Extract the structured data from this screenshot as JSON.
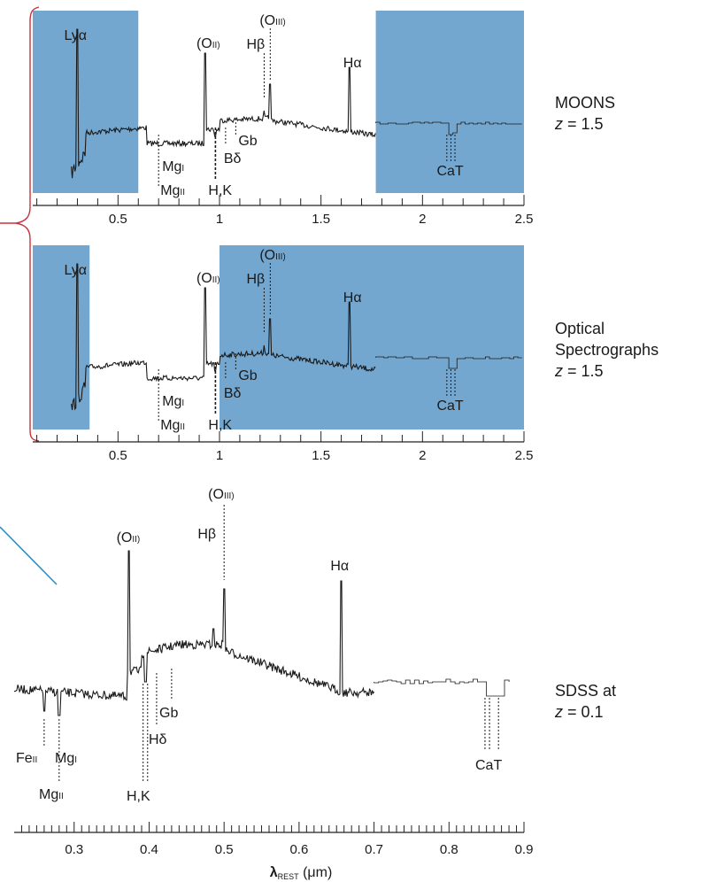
{
  "colors": {
    "band": "#74a7cf",
    "spectrum": "#1a1a1a",
    "bracket": "#c8323c",
    "pointer": "#2a8fc4",
    "axis": "#222222"
  },
  "chart_data": [
    {
      "type": "line",
      "panel": "MOONS",
      "label_lines": [
        "MOONS",
        "z = 1.5"
      ],
      "label_line_1": "MOONS",
      "label_z": "1.5",
      "xlim": [
        0.08,
        2.5
      ],
      "x_ticks": [
        0.5,
        1,
        1.5,
        2,
        2.5
      ],
      "x_tick_labels": [
        "0.5",
        "1",
        "1.5",
        "2",
        "2.5"
      ],
      "shaded_ranges": [
        [
          0.08,
          0.6
        ],
        [
          1.77,
          2.5
        ]
      ],
      "emission_lines": [
        {
          "label": "Lyα",
          "x": 0.3
        },
        {
          "label": "(OII)",
          "x": 0.93
        },
        {
          "label": "Hβ",
          "x": 1.22
        },
        {
          "label": "(OIII)",
          "x": 1.25
        },
        {
          "label": "Hα",
          "x": 1.64
        }
      ],
      "absorption_lines": [
        {
          "label": "MgI",
          "x": 0.7
        },
        {
          "label": "MgII",
          "x": 0.7
        },
        {
          "label": "H,K",
          "x": 0.98
        },
        {
          "label": "Bδ",
          "x": 1.03
        },
        {
          "label": "Gb",
          "x": 1.08
        },
        {
          "label": "CaT",
          "x": 2.14
        }
      ],
      "observed_range": [
        0.08,
        1.77
      ]
    },
    {
      "type": "line",
      "panel": "Optical Spectrographs",
      "label_lines": [
        "Optical",
        "Spectrographs",
        "z = 1.5"
      ],
      "label_line_1": "Optical",
      "label_line_2": "Spectrographs",
      "label_z": "1.5",
      "xlim": [
        0.08,
        2.5
      ],
      "x_ticks": [
        0.5,
        1,
        1.5,
        2,
        2.5
      ],
      "x_tick_labels": [
        "0.5",
        "1",
        "1.5",
        "2",
        "2.5"
      ],
      "shaded_ranges": [
        [
          0.08,
          0.36
        ],
        [
          1.0,
          2.5
        ]
      ],
      "emission_lines": [
        {
          "label": "Lyα",
          "x": 0.3
        },
        {
          "label": "(OII)",
          "x": 0.93
        },
        {
          "label": "Hβ",
          "x": 1.22
        },
        {
          "label": "(OIII)",
          "x": 1.25
        },
        {
          "label": "Hα",
          "x": 1.64
        }
      ],
      "absorption_lines": [
        {
          "label": "MgI",
          "x": 0.7
        },
        {
          "label": "MgII",
          "x": 0.7
        },
        {
          "label": "H,K",
          "x": 0.98
        },
        {
          "label": "Bδ",
          "x": 1.03
        },
        {
          "label": "Gb",
          "x": 1.08
        },
        {
          "label": "CaT",
          "x": 2.14
        }
      ]
    },
    {
      "type": "line",
      "panel": "SDSS",
      "label_lines": [
        "SDSS at",
        "z = 0.1"
      ],
      "label_line_1": "SDSS at",
      "label_z": "0.1",
      "xlabel": "λREST (μm)",
      "xlabel_main": "λ",
      "xlabel_sub": "REST",
      "xlabel_unit": " (μm)",
      "xlim": [
        0.22,
        0.9
      ],
      "x_ticks": [
        0.3,
        0.4,
        0.5,
        0.6,
        0.7,
        0.8,
        0.9
      ],
      "x_tick_labels": [
        "0.3",
        "0.4",
        "0.5",
        "0.6",
        "0.7",
        "0.8",
        "0.9"
      ],
      "emission_lines": [
        {
          "label": "(OII)",
          "x": 0.373
        },
        {
          "label": "Hβ",
          "x": 0.486
        },
        {
          "label": "(OIII)",
          "x": 0.5
        },
        {
          "label": "Hα",
          "x": 0.656
        }
      ],
      "absorption_lines": [
        {
          "label": "FeII",
          "x": 0.26
        },
        {
          "label": "MgI",
          "x": 0.285
        },
        {
          "label": "MgII",
          "x": 0.28
        },
        {
          "label": "H,K",
          "x": 0.395
        },
        {
          "label": "Hδ",
          "x": 0.41
        },
        {
          "label": "Gb",
          "x": 0.43
        },
        {
          "label": "CaT",
          "x": 0.86
        }
      ]
    }
  ]
}
